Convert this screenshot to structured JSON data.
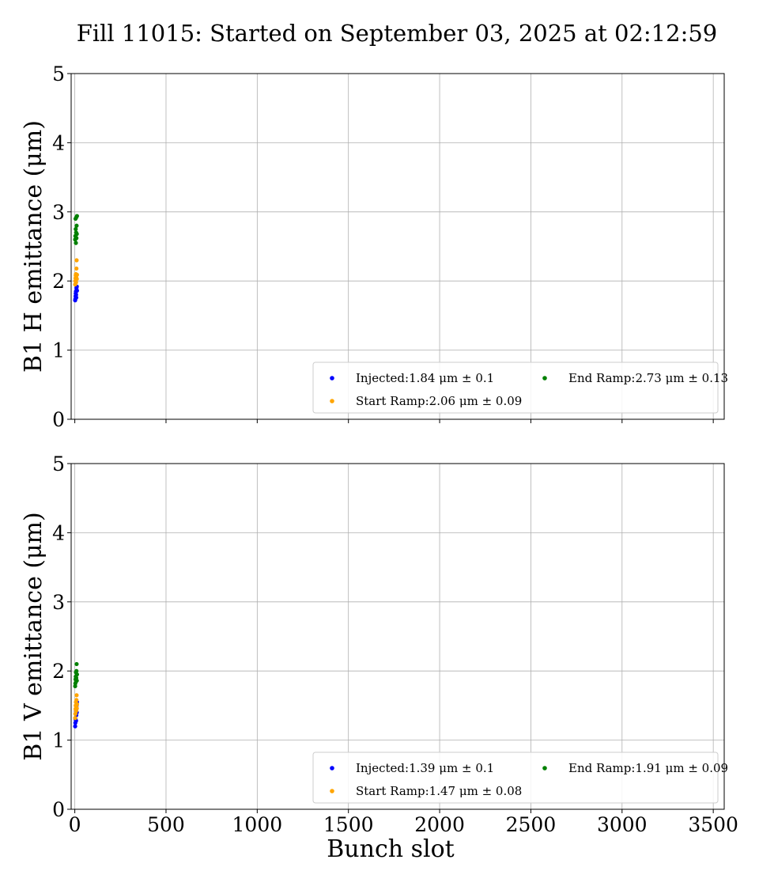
{
  "figure": {
    "title": "Fill 11015: Started on September 03, 2025 at 02:12:59"
  },
  "colors": {
    "injected": "#0000ff",
    "start_ramp": "#ffa500",
    "end_ramp": "#008000",
    "grid": "#b0b0b0"
  },
  "chart_data": [
    {
      "type": "scatter",
      "ylabel": "B1 H emittance (μm)",
      "xlabel": "",
      "xlim": [
        -20,
        3560
      ],
      "ylim": [
        0,
        5
      ],
      "xticks": [
        0,
        500,
        1000,
        1500,
        2000,
        2500,
        3000,
        3500
      ],
      "yticks": [
        0,
        1,
        2,
        3,
        4,
        5
      ],
      "show_xtick_labels": false,
      "grid": true,
      "legend_position": "lower-right",
      "series": [
        {
          "key": "injected",
          "legend": "Injected:1.84 μm ± 0.1",
          "x": [
            2,
            3,
            4,
            5,
            6,
            7,
            8,
            9,
            10,
            11,
            12
          ],
          "y": [
            1.72,
            1.74,
            1.78,
            1.82,
            1.85,
            1.8,
            1.76,
            1.9,
            1.87,
            1.92,
            1.86
          ]
        },
        {
          "key": "start_ramp",
          "legend": "Start Ramp:2.06 μm ± 0.09",
          "x": [
            2,
            3,
            4,
            5,
            6,
            7,
            8,
            9,
            10,
            11,
            12
          ],
          "y": [
            1.95,
            2.0,
            2.04,
            2.08,
            2.1,
            1.98,
            2.05,
            2.18,
            2.3,
            2.03,
            2.09
          ]
        },
        {
          "key": "end_ramp",
          "legend": "End Ramp:2.73 μm ± 0.13",
          "x": [
            2,
            3,
            4,
            5,
            6,
            7,
            8,
            9,
            10,
            11,
            12
          ],
          "y": [
            2.6,
            2.65,
            2.9,
            2.75,
            2.55,
            2.7,
            2.92,
            2.62,
            2.8,
            2.68,
            2.94
          ]
        }
      ]
    },
    {
      "type": "scatter",
      "ylabel": "B1 V emittance (μm)",
      "xlabel": "Bunch slot",
      "xlim": [
        -20,
        3560
      ],
      "ylim": [
        0,
        5
      ],
      "xticks": [
        0,
        500,
        1000,
        1500,
        2000,
        2500,
        3000,
        3500
      ],
      "yticks": [
        0,
        1,
        2,
        3,
        4,
        5
      ],
      "show_xtick_labels": true,
      "grid": true,
      "legend_position": "lower-right",
      "series": [
        {
          "key": "injected",
          "legend": "Injected:1.39 μm ± 0.1",
          "x": [
            2,
            3,
            4,
            5,
            6,
            7,
            8,
            9,
            10,
            11,
            12
          ],
          "y": [
            1.2,
            1.25,
            1.3,
            1.38,
            1.42,
            1.28,
            1.36,
            1.45,
            1.5,
            1.4,
            1.55
          ]
        },
        {
          "key": "start_ramp",
          "legend": "Start Ramp:1.47 μm ± 0.08",
          "x": [
            2,
            3,
            4,
            5,
            6,
            7,
            8,
            9,
            10,
            11,
            12
          ],
          "y": [
            1.32,
            1.38,
            1.45,
            1.5,
            1.55,
            1.42,
            1.48,
            1.58,
            1.65,
            1.46,
            1.52
          ]
        },
        {
          "key": "end_ramp",
          "legend": "End Ramp:1.91 μm ± 0.09",
          "x": [
            2,
            3,
            4,
            5,
            6,
            7,
            8,
            9,
            10,
            11,
            12
          ],
          "y": [
            1.78,
            1.82,
            1.88,
            1.92,
            1.98,
            1.85,
            1.9,
            2.0,
            2.1,
            1.86,
            1.95
          ]
        }
      ]
    }
  ]
}
